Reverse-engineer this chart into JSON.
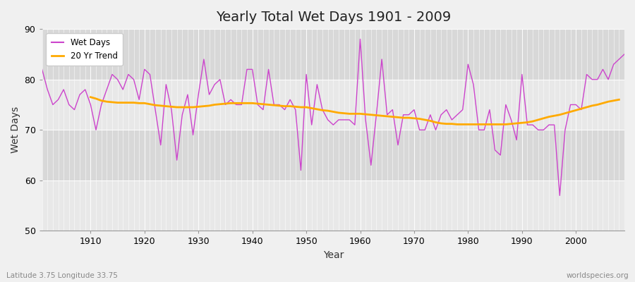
{
  "title": "Yearly Total Wet Days 1901 - 2009",
  "xlabel": "Year",
  "ylabel": "Wet Days",
  "fig_bg_color": "#f0f0f0",
  "plot_bg_color": "#e8e8e8",
  "band_color": "#d8d8d8",
  "wet_days_color": "#cc44cc",
  "trend_color": "#ffaa00",
  "footer_left": "Latitude 3.75 Longitude 33.75",
  "footer_right": "worldspecies.org",
  "ylim": [
    50,
    90
  ],
  "xlim": [
    1901,
    2009
  ],
  "years": [
    1901,
    1902,
    1903,
    1904,
    1905,
    1906,
    1907,
    1908,
    1909,
    1910,
    1911,
    1912,
    1913,
    1914,
    1915,
    1916,
    1917,
    1918,
    1919,
    1920,
    1921,
    1922,
    1923,
    1924,
    1925,
    1926,
    1927,
    1928,
    1929,
    1930,
    1931,
    1932,
    1933,
    1934,
    1935,
    1936,
    1937,
    1938,
    1939,
    1940,
    1941,
    1942,
    1943,
    1944,
    1945,
    1946,
    1947,
    1948,
    1949,
    1950,
    1951,
    1952,
    1953,
    1954,
    1955,
    1956,
    1957,
    1958,
    1959,
    1960,
    1961,
    1962,
    1963,
    1964,
    1965,
    1966,
    1967,
    1968,
    1969,
    1970,
    1971,
    1972,
    1973,
    1974,
    1975,
    1976,
    1977,
    1978,
    1979,
    1980,
    1981,
    1982,
    1983,
    1984,
    1985,
    1986,
    1987,
    1988,
    1989,
    1990,
    1991,
    1992,
    1993,
    1994,
    1995,
    1996,
    1997,
    1998,
    1999,
    2000,
    2001,
    2002,
    2003,
    2004,
    2005,
    2006,
    2007,
    2008,
    2009
  ],
  "wet_days": [
    82,
    78,
    75,
    76,
    78,
    75,
    74,
    77,
    78,
    75,
    70,
    75,
    78,
    81,
    80,
    78,
    81,
    80,
    76,
    82,
    81,
    74,
    67,
    79,
    74,
    64,
    73,
    77,
    69,
    77,
    84,
    77,
    79,
    80,
    75,
    76,
    75,
    75,
    82,
    82,
    75,
    74,
    82,
    75,
    75,
    74,
    76,
    74,
    62,
    81,
    71,
    79,
    74,
    72,
    71,
    72,
    72,
    72,
    71,
    88,
    72,
    63,
    73,
    84,
    73,
    74,
    67,
    73,
    73,
    74,
    70,
    70,
    73,
    70,
    73,
    74,
    72,
    73,
    74,
    83,
    79,
    70,
    70,
    74,
    66,
    65,
    75,
    72,
    68,
    81,
    71,
    71,
    70,
    70,
    71,
    71,
    57,
    70,
    75,
    75,
    74,
    81,
    80,
    80,
    82,
    80,
    83,
    84,
    85
  ],
  "trend": [
    null,
    null,
    null,
    null,
    null,
    null,
    null,
    null,
    null,
    76.5,
    76.2,
    75.8,
    75.6,
    75.5,
    75.4,
    75.4,
    75.4,
    75.4,
    75.3,
    75.3,
    75.1,
    74.9,
    74.8,
    74.7,
    74.6,
    74.5,
    74.5,
    74.5,
    74.5,
    74.6,
    74.7,
    74.8,
    75.0,
    75.1,
    75.2,
    75.3,
    75.3,
    75.3,
    75.3,
    75.3,
    75.2,
    75.1,
    75.0,
    74.9,
    74.8,
    74.7,
    74.7,
    74.6,
    74.5,
    74.5,
    74.3,
    74.1,
    73.9,
    73.8,
    73.6,
    73.4,
    73.3,
    73.2,
    73.2,
    73.2,
    73.1,
    73.0,
    72.9,
    72.8,
    72.7,
    72.6,
    72.5,
    72.4,
    72.4,
    72.3,
    72.2,
    72.0,
    71.8,
    71.5,
    71.3,
    71.2,
    71.2,
    71.1,
    71.1,
    71.1,
    71.1,
    71.1,
    71.1,
    71.1,
    71.1,
    71.1,
    71.1,
    71.2,
    71.3,
    71.4,
    71.5,
    71.7,
    72.0,
    72.3,
    72.6,
    72.8,
    73.0,
    73.3,
    73.6,
    73.9,
    74.2,
    74.5,
    74.8,
    75.0,
    75.3,
    75.6,
    75.8,
    76.0,
    null
  ]
}
